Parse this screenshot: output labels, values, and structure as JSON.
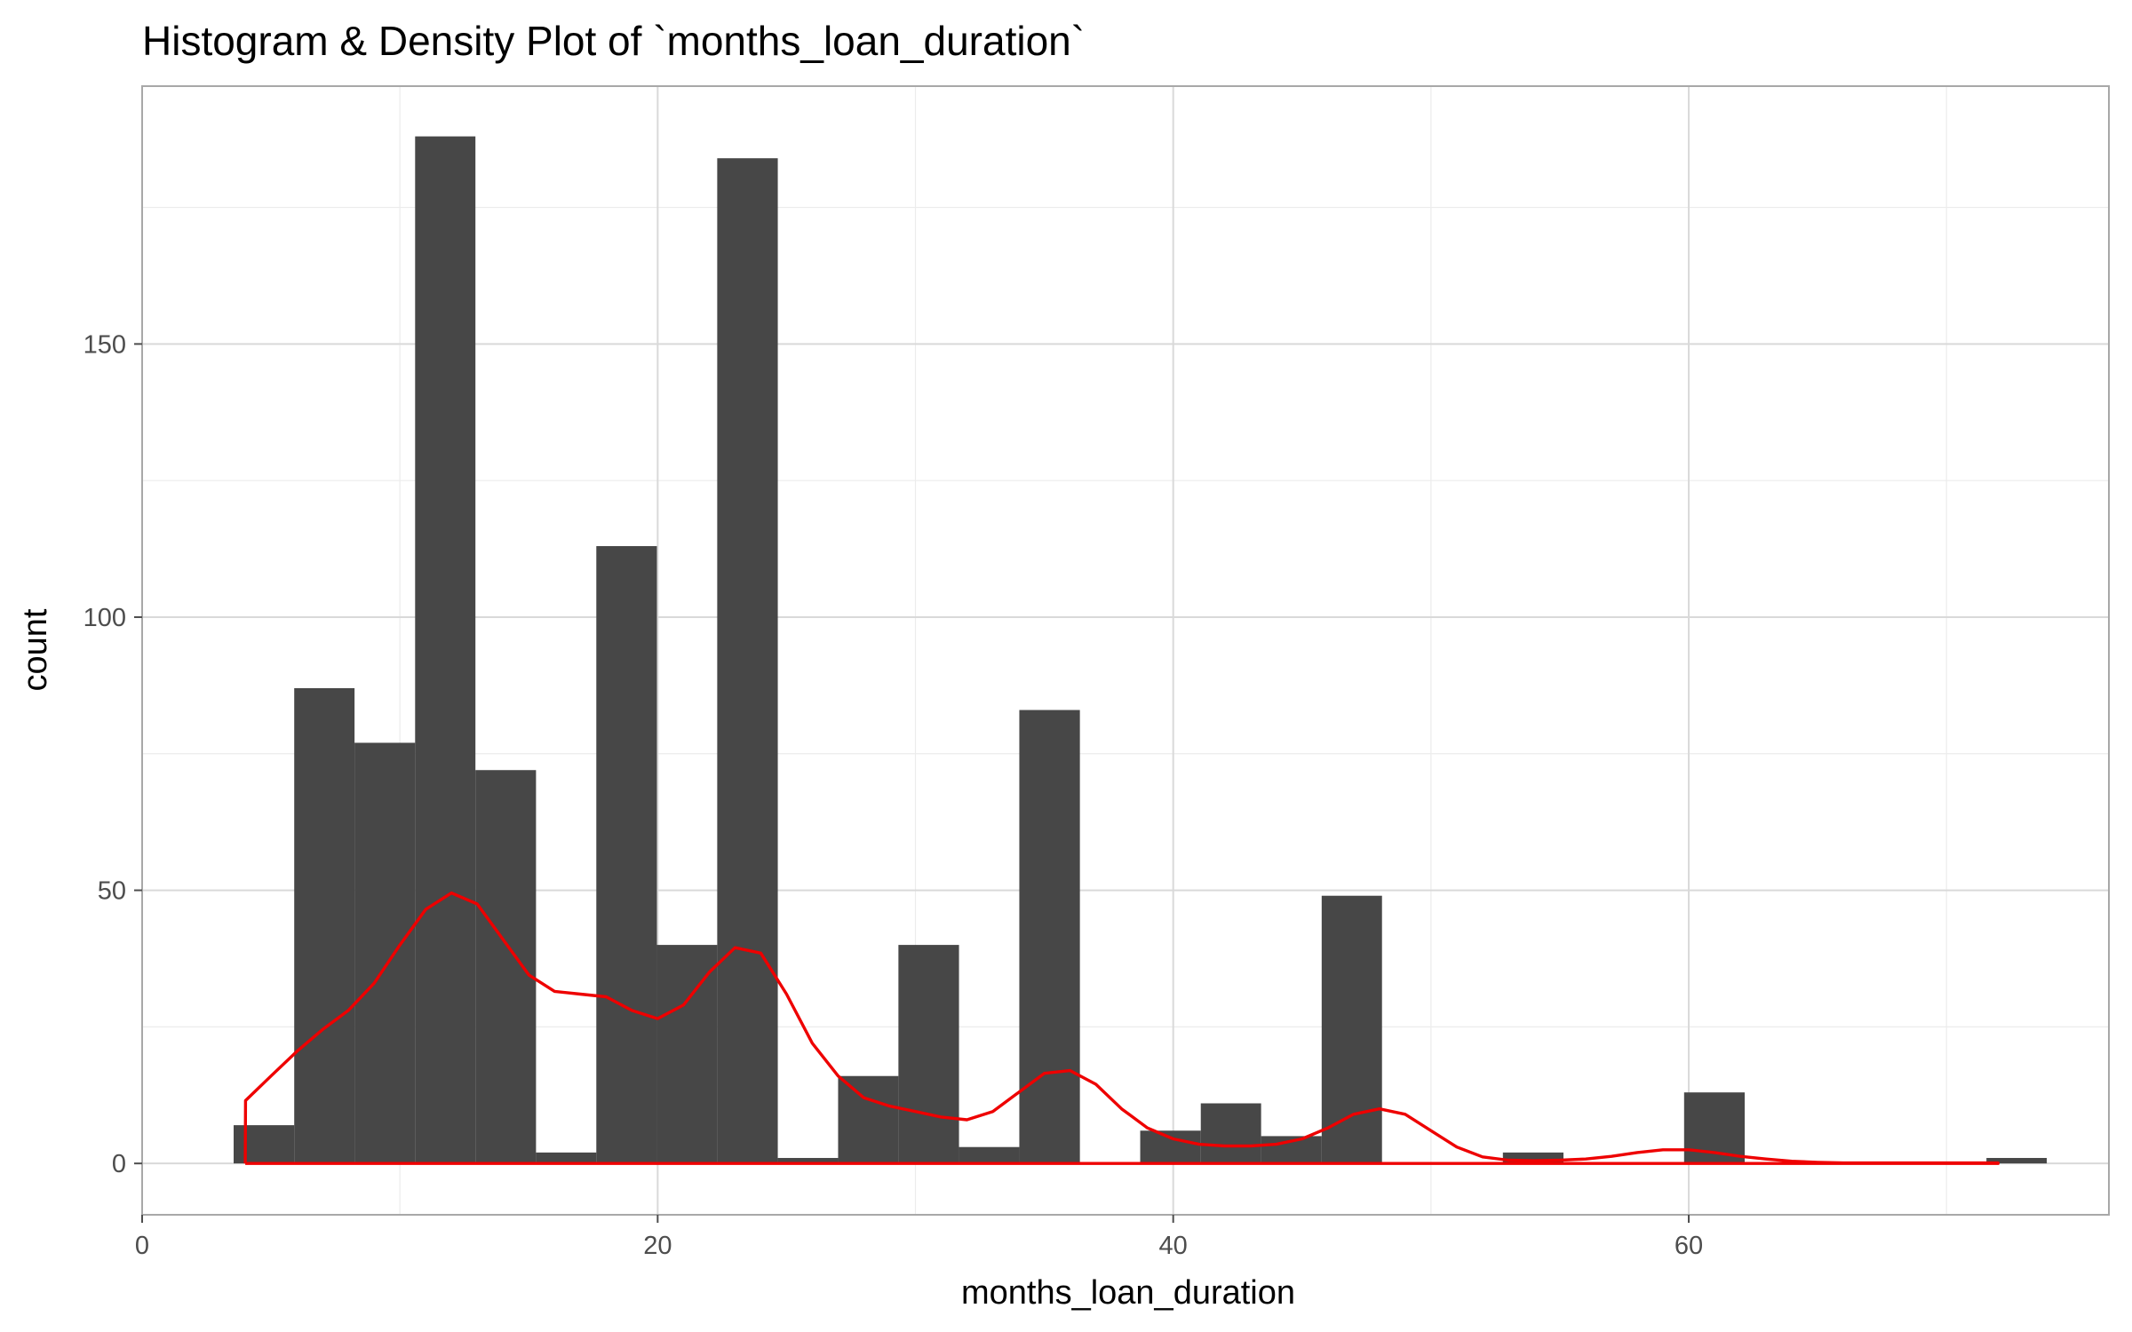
{
  "chart_data": {
    "type": "histogram",
    "title": "Histogram & Density Plot of `months_loan_duration`",
    "xlabel": "months_loan_duration",
    "ylabel": "count",
    "xlim": [
      0,
      76.3
    ],
    "ylim": [
      -9.4,
      197.2
    ],
    "x_ticks": [
      0,
      20,
      40,
      60
    ],
    "y_ticks": [
      0,
      50,
      100,
      150
    ],
    "grid": true,
    "bin_width": 2.345,
    "bins": [
      {
        "start": 3.55,
        "end": 5.9,
        "count": 7
      },
      {
        "start": 5.9,
        "end": 8.24,
        "count": 87
      },
      {
        "start": 8.24,
        "end": 10.59,
        "count": 77
      },
      {
        "start": 10.59,
        "end": 12.93,
        "count": 188
      },
      {
        "start": 12.93,
        "end": 15.28,
        "count": 72
      },
      {
        "start": 15.28,
        "end": 17.62,
        "count": 2
      },
      {
        "start": 17.62,
        "end": 19.97,
        "count": 113
      },
      {
        "start": 19.97,
        "end": 22.31,
        "count": 40
      },
      {
        "start": 22.31,
        "end": 24.66,
        "count": 184
      },
      {
        "start": 24.66,
        "end": 27.0,
        "count": 1
      },
      {
        "start": 27.0,
        "end": 29.34,
        "count": 16
      },
      {
        "start": 29.34,
        "end": 31.69,
        "count": 40
      },
      {
        "start": 31.69,
        "end": 34.03,
        "count": 3
      },
      {
        "start": 34.03,
        "end": 36.38,
        "count": 83
      },
      {
        "start": 36.38,
        "end": 38.72,
        "count": 0
      },
      {
        "start": 38.72,
        "end": 41.07,
        "count": 6
      },
      {
        "start": 41.07,
        "end": 43.41,
        "count": 11
      },
      {
        "start": 43.41,
        "end": 45.76,
        "count": 5
      },
      {
        "start": 45.76,
        "end": 48.1,
        "count": 49
      },
      {
        "start": 48.1,
        "end": 50.45,
        "count": 0
      },
      {
        "start": 50.45,
        "end": 52.79,
        "count": 0
      },
      {
        "start": 52.79,
        "end": 55.14,
        "count": 2
      },
      {
        "start": 55.14,
        "end": 57.48,
        "count": 0
      },
      {
        "start": 57.48,
        "end": 59.82,
        "count": 0
      },
      {
        "start": 59.82,
        "end": 62.17,
        "count": 13
      },
      {
        "start": 62.17,
        "end": 64.51,
        "count": 0
      },
      {
        "start": 64.51,
        "end": 66.86,
        "count": 0
      },
      {
        "start": 66.86,
        "end": 69.2,
        "count": 0
      },
      {
        "start": 69.2,
        "end": 71.55,
        "count": 0
      },
      {
        "start": 71.55,
        "end": 73.89,
        "count": 1
      }
    ],
    "density": {
      "color": "#ee0000",
      "x": [
        4,
        4.01,
        5,
        6,
        7,
        8,
        9,
        10,
        11,
        12,
        13,
        14,
        15,
        16,
        17,
        18,
        19,
        20,
        21,
        22,
        23,
        24,
        25,
        26,
        27,
        28,
        29,
        30,
        31,
        32,
        33,
        34,
        35,
        36,
        37,
        38,
        39,
        40,
        41,
        42,
        43,
        44,
        45,
        46,
        47,
        48,
        49,
        50,
        51,
        52,
        53,
        54,
        55,
        56,
        57,
        58,
        59,
        60,
        61,
        62,
        63,
        64,
        65,
        66,
        67,
        68,
        69,
        70,
        71,
        72,
        72,
        4
      ],
      "y": [
        0,
        11.5,
        16,
        20.5,
        24.5,
        28,
        33,
        40,
        46.5,
        49.5,
        47.5,
        41,
        34.5,
        31.5,
        31,
        30.5,
        28,
        26.5,
        29,
        35,
        39.5,
        38.5,
        31,
        22,
        16,
        12,
        10.5,
        9.5,
        8.5,
        8,
        9.5,
        13,
        16.5,
        17,
        14.5,
        10,
        6.5,
        4.5,
        3.5,
        3.2,
        3.2,
        3.5,
        4.5,
        6.5,
        9,
        10,
        9,
        6,
        3,
        1.2,
        0.6,
        0.5,
        0.6,
        0.8,
        1.3,
        2,
        2.5,
        2.5,
        2,
        1.3,
        0.8,
        0.4,
        0.2,
        0.1,
        0.1,
        0.1,
        0.1,
        0.1,
        0.1,
        0.1,
        0,
        0
      ]
    },
    "colors": {
      "bar": "#474747",
      "density_line": "#ee0000",
      "grid": "#d9d9d9",
      "panel_border": "#a8a8a8"
    }
  }
}
